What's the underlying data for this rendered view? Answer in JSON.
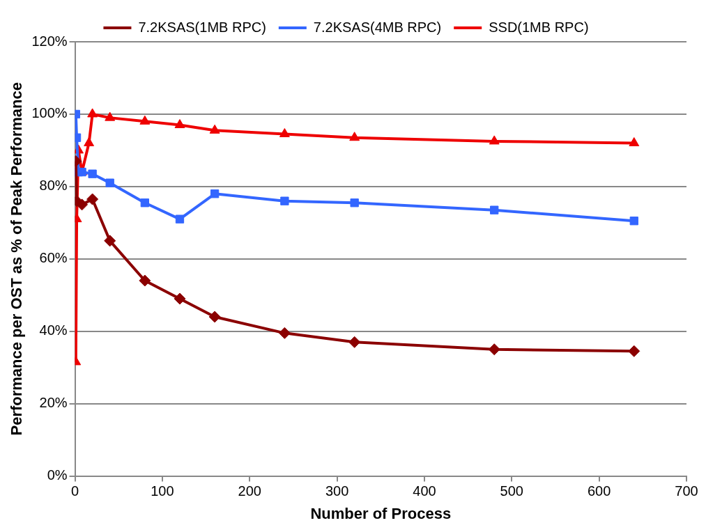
{
  "chart_data": {
    "type": "line",
    "xlabel": "Number of Process",
    "ylabel": "Performance per OST as % of Peak Performance",
    "xlim": [
      0,
      700
    ],
    "xticks": [
      0,
      100,
      200,
      300,
      400,
      500,
      600,
      700
    ],
    "ylim": [
      0,
      120
    ],
    "yticks": [
      {
        "value": 0,
        "label": "0%"
      },
      {
        "value": 20,
        "label": "20%"
      },
      {
        "value": 40,
        "label": "40%"
      },
      {
        "value": 60,
        "label": "60%"
      },
      {
        "value": 80,
        "label": "80%"
      },
      {
        "value": 100,
        "label": "100%"
      },
      {
        "value": 120,
        "label": "120%"
      }
    ],
    "grid": "y",
    "legend": "top",
    "line_style": "solid",
    "series": [
      {
        "name": "7.2KSAS(1MB RPC)",
        "color": "#8b0000",
        "marker": "diamond",
        "x": [
          1,
          2,
          8,
          20,
          40,
          80,
          120,
          160,
          240,
          320,
          480,
          640
        ],
        "values": [
          87,
          76,
          75,
          76.5,
          65,
          54,
          49,
          44,
          39.5,
          37,
          35,
          34.5
        ]
      },
      {
        "name": "7.2KSAS(4MB RPC)",
        "color": "#3366ff",
        "marker": "square",
        "x": [
          1,
          2,
          4,
          8,
          20,
          40,
          80,
          120,
          160,
          240,
          320,
          480,
          640
        ],
        "values": [
          100,
          93.5,
          84,
          84,
          83.5,
          81,
          75.5,
          71,
          78,
          76,
          75.5,
          73.5,
          70.5
        ]
      },
      {
        "name": "SSD(1MB RPC)",
        "color": "#ee0000",
        "marker": "triangle",
        "x": [
          1,
          2,
          4,
          8,
          16,
          20,
          40,
          80,
          120,
          160,
          240,
          320,
          480,
          640
        ],
        "values": [
          31.5,
          71,
          90,
          84,
          92,
          100,
          99,
          98,
          97,
          95.5,
          94.5,
          93.5,
          92.5,
          92
        ]
      }
    ]
  }
}
